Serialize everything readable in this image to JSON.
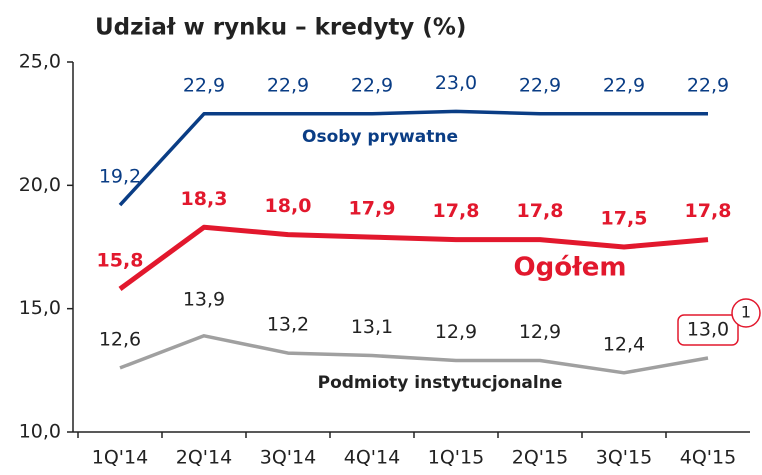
{
  "chart_data": {
    "type": "line",
    "title": "Udział w rynku – kredyty (%)",
    "categories": [
      "1Q'14",
      "2Q'14",
      "3Q'14",
      "4Q'14",
      "1Q'15",
      "2Q'15",
      "3Q'15",
      "4Q'15"
    ],
    "series": [
      {
        "name": "Osoby prywatne",
        "color": "#0a3d85",
        "values": [
          19.2,
          22.9,
          22.9,
          22.9,
          23.0,
          22.9,
          22.9,
          22.9
        ],
        "value_labels": [
          "19,2",
          "22,9",
          "22,9",
          "22,9",
          "23,0",
          "22,9",
          "22,9",
          "22,9"
        ]
      },
      {
        "name": "Ogółem",
        "color": "#e2182d",
        "values": [
          15.8,
          18.3,
          18.0,
          17.9,
          17.8,
          17.8,
          17.5,
          17.8
        ],
        "value_labels": [
          "15,8",
          "18,3",
          "18,0",
          "17,9",
          "17,8",
          "17,8",
          "17,5",
          "17,8"
        ]
      },
      {
        "name": "Podmioty instytucjonalne",
        "color": "#a0a0a0",
        "values": [
          12.6,
          13.9,
          13.2,
          13.1,
          12.9,
          12.9,
          12.4,
          13.0
        ],
        "value_labels": [
          "12,6",
          "13,9",
          "13,2",
          "13,1",
          "12,9",
          "12,9",
          "12,4",
          "13,0"
        ]
      }
    ],
    "ylim": [
      10,
      25
    ],
    "yticks": [
      {
        "value": 10,
        "label": "10,0"
      },
      {
        "value": 15,
        "label": "15,0"
      },
      {
        "value": 20,
        "label": "20,0"
      },
      {
        "value": 25,
        "label": "25,0"
      }
    ],
    "annotation": "1"
  }
}
